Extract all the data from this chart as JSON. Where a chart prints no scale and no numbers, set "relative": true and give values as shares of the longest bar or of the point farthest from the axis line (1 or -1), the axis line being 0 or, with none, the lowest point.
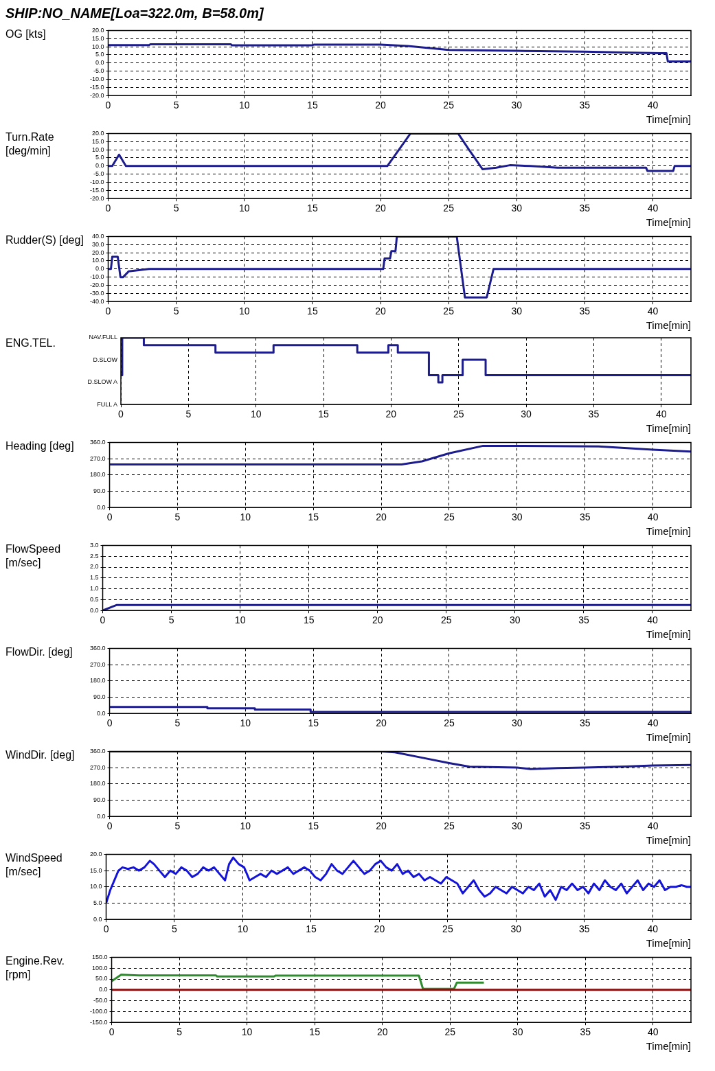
{
  "chart_data": [
    {
      "type": "line",
      "title": "SHIP:NO_NAME[Loa=322.0m, B=58.0m]",
      "ylabel": "OG [kts]",
      "xlabel": "Time[min]",
      "grid": true,
      "line_style": "solid",
      "xlim": [
        0,
        42.8
      ],
      "xticks": [
        0,
        5,
        10,
        15,
        20,
        25,
        30,
        35,
        40
      ],
      "ylim": [
        -20,
        20
      ],
      "yticks": [
        {
          "value": -20,
          "label": "-20.0"
        },
        {
          "value": -15,
          "label": "-15.0"
        },
        {
          "value": -10,
          "label": "-10.0"
        },
        {
          "value": -5,
          "label": "-5.0"
        },
        {
          "value": 0,
          "label": "0.0"
        },
        {
          "value": 5,
          "label": "5.0"
        },
        {
          "value": 10,
          "label": "10.0"
        },
        {
          "value": 15,
          "label": "15.0"
        },
        {
          "value": 20,
          "label": "20.0"
        }
      ],
      "series": [
        {
          "color": "#1c1c8c",
          "x": [
            0,
            3,
            3.1,
            9,
            9.1,
            15,
            15.1,
            20,
            22,
            24.5,
            25,
            30,
            35,
            38,
            40.5,
            41,
            41.1,
            42.8
          ],
          "values": [
            11,
            11,
            11.5,
            11.5,
            10.9,
            10.9,
            11.3,
            11.3,
            10.5,
            8.5,
            8,
            7.5,
            7,
            6.5,
            6,
            6,
            1,
            1
          ]
        }
      ]
    },
    {
      "type": "line",
      "ylabel": "Turn.Rate [deg/min]",
      "xlabel": "Time[min]",
      "grid": true,
      "line_style": "solid",
      "xlim": [
        0,
        42.8
      ],
      "xticks": [
        0,
        5,
        10,
        15,
        20,
        25,
        30,
        35,
        40
      ],
      "ylim": [
        -20,
        20
      ],
      "yticks": [
        {
          "value": -20,
          "label": "-20.0"
        },
        {
          "value": -15,
          "label": "-15.0"
        },
        {
          "value": -10,
          "label": "-10.0"
        },
        {
          "value": -5,
          "label": "-5.0"
        },
        {
          "value": 0,
          "label": "0.0"
        },
        {
          "value": 5,
          "label": "5.0"
        },
        {
          "value": 10,
          "label": "10.0"
        },
        {
          "value": 15,
          "label": "15.0"
        },
        {
          "value": 20,
          "label": "20.0"
        }
      ],
      "series": [
        {
          "color": "#1c1c8c",
          "x": [
            0,
            0.3,
            0.8,
            1.3,
            20.5,
            22.2,
            25.7,
            26.5,
            27.5,
            28.5,
            29.5,
            31,
            33,
            39.5,
            39.6,
            41.5,
            41.6,
            42.8
          ],
          "values": [
            0,
            0,
            7,
            0,
            0,
            20,
            20,
            10,
            -2,
            -1,
            0.5,
            0,
            -1,
            -1,
            -3,
            -3,
            0,
            0
          ]
        }
      ]
    },
    {
      "type": "line",
      "ylabel": "Rudder(S) [deg]",
      "xlabel": "Time[min]",
      "grid": true,
      "line_style": "solid",
      "xlim": [
        0,
        42.8
      ],
      "xticks": [
        0,
        5,
        10,
        15,
        20,
        25,
        30,
        35,
        40
      ],
      "ylim": [
        -40,
        40
      ],
      "yticks": [
        {
          "value": -40,
          "label": "-40.0"
        },
        {
          "value": -30,
          "label": "-30.0"
        },
        {
          "value": -20,
          "label": "-20.0"
        },
        {
          "value": -10,
          "label": "-10.0"
        },
        {
          "value": 0,
          "label": "0.0"
        },
        {
          "value": 10,
          "label": "10.0"
        },
        {
          "value": 20,
          "label": "20.0"
        },
        {
          "value": 30,
          "label": "30.0"
        },
        {
          "value": 40,
          "label": "40.0"
        }
      ],
      "series": [
        {
          "color": "#1c1c8c",
          "x": [
            0,
            0.2,
            0.3,
            0.7,
            0.9,
            1.1,
            1.5,
            3,
            20.2,
            20.3,
            20.7,
            20.8,
            21.1,
            21.2,
            25.6,
            26.2,
            27.8,
            28.3,
            42.8
          ],
          "values": [
            0,
            0,
            15,
            15,
            -10,
            -10,
            -3,
            0,
            0,
            13,
            13,
            22,
            22,
            40,
            40,
            -35,
            -35,
            0,
            0
          ]
        }
      ]
    },
    {
      "type": "step",
      "ylabel": "ENG.TEL.",
      "xlabel": "Time[min]",
      "grid": "x",
      "line_style": "solid",
      "relative": true,
      "xlim": [
        0,
        42.2
      ],
      "xticks": [
        0,
        5,
        10,
        15,
        20,
        25,
        30,
        35,
        40
      ],
      "annotations": [
        "NAV.FULL",
        "D.SLOW",
        "D.SLOW A",
        "FULL A"
      ],
      "series": [
        {
          "color": "#1c1c8c",
          "x": [
            0,
            0.1,
            1.7,
            7,
            11.3,
            17.5,
            19.8,
            20.5,
            22.8,
            23.5,
            23.8,
            25.3,
            27,
            42.2
          ],
          "values": [
            0.44,
            1,
            0.89,
            0.78,
            0.89,
            0.78,
            0.89,
            0.78,
            0.44,
            0.33,
            0.44,
            0.67,
            0.44,
            0.44
          ]
        }
      ]
    },
    {
      "type": "line",
      "ylabel": "Heading [deg]",
      "xlabel": "Time[min]",
      "grid": true,
      "line_style": "solid",
      "xlim": [
        0,
        42.8
      ],
      "xticks": [
        0,
        5,
        10,
        15,
        20,
        25,
        30,
        35,
        40
      ],
      "ylim": [
        0,
        360
      ],
      "yticks": [
        {
          "value": 0,
          "label": "0.0"
        },
        {
          "value": 90,
          "label": "90.0"
        },
        {
          "value": 180,
          "label": "180.0"
        },
        {
          "value": 270,
          "label": "270.0"
        },
        {
          "value": 360,
          "label": "360.0"
        }
      ],
      "series": [
        {
          "color": "#1c1c8c",
          "x": [
            0,
            21.5,
            23,
            25,
            27.5,
            30,
            36,
            40,
            42.8
          ],
          "values": [
            238,
            238,
            255,
            300,
            341,
            341,
            338,
            320,
            309
          ]
        }
      ]
    },
    {
      "type": "line",
      "ylabel": "FlowSpeed [m/sec]",
      "xlabel": "Time[min]",
      "grid": true,
      "line_style": "solid",
      "xlim": [
        0,
        42.8
      ],
      "xticks": [
        0,
        5,
        10,
        15,
        20,
        25,
        30,
        35,
        40
      ],
      "ylim": [
        0,
        3
      ],
      "yticks": [
        {
          "value": 0,
          "label": "0.0"
        },
        {
          "value": 0.5,
          "label": "0.5"
        },
        {
          "value": 1,
          "label": "1.0"
        },
        {
          "value": 1.5,
          "label": "1.5"
        },
        {
          "value": 2,
          "label": "2.0"
        },
        {
          "value": 2.5,
          "label": "2.5"
        },
        {
          "value": 3,
          "label": "3.0"
        }
      ],
      "series": [
        {
          "color": "#1c1c8c",
          "x": [
            0,
            1,
            42.8
          ],
          "values": [
            0,
            0.25,
            0.25
          ]
        }
      ]
    },
    {
      "type": "step",
      "ylabel": "FlowDir. [deg]",
      "xlabel": "Time[min]",
      "grid": true,
      "line_style": "solid",
      "xlim": [
        0,
        42.8
      ],
      "xticks": [
        0,
        5,
        10,
        15,
        20,
        25,
        30,
        35,
        40
      ],
      "ylim": [
        0,
        360
      ],
      "yticks": [
        {
          "value": 0,
          "label": "0.0"
        },
        {
          "value": 90,
          "label": "90.0"
        },
        {
          "value": 180,
          "label": "180.0"
        },
        {
          "value": 270,
          "label": "270.0"
        },
        {
          "value": 360,
          "label": "360.0"
        }
      ],
      "series": [
        {
          "color": "#1c1c8c",
          "x": [
            0,
            7.2,
            10.7,
            14.8,
            42.8
          ],
          "values": [
            36,
            28,
            22,
            8,
            8
          ]
        }
      ]
    },
    {
      "type": "line",
      "ylabel": "WindDir. [deg]",
      "xlabel": "Time[min]",
      "grid": true,
      "line_style": "solid",
      "xlim": [
        0,
        42.8
      ],
      "xticks": [
        0,
        5,
        10,
        15,
        20,
        25,
        30,
        35,
        40
      ],
      "ylim": [
        0,
        360
      ],
      "yticks": [
        {
          "value": 0,
          "label": "0.0"
        },
        {
          "value": 90,
          "label": "90.0"
        },
        {
          "value": 180,
          "label": "180.0"
        },
        {
          "value": 270,
          "label": "270.0"
        },
        {
          "value": 360,
          "label": "360.0"
        }
      ],
      "series": [
        {
          "color": "#1c1c8c",
          "x": [
            0,
            20,
            21,
            23,
            25,
            26.5,
            30,
            31,
            33,
            35,
            38,
            40,
            42.8
          ],
          "values": [
            360,
            360,
            355,
            325,
            295,
            275,
            270,
            262,
            268,
            270,
            276,
            282,
            285
          ]
        }
      ]
    },
    {
      "type": "line",
      "ylabel": "WindSpeed [m/sec]",
      "xlabel": "Time[min]",
      "grid": true,
      "line_style": "solid",
      "xlim": [
        0,
        42.8
      ],
      "xticks": [
        0,
        5,
        10,
        15,
        20,
        25,
        30,
        35,
        40
      ],
      "ylim": [
        0,
        20
      ],
      "yticks": [
        {
          "value": 0,
          "label": "0.0"
        },
        {
          "value": 5,
          "label": "5.0"
        },
        {
          "value": 10,
          "label": "10.0"
        },
        {
          "value": 15,
          "label": "15.0"
        },
        {
          "value": 20,
          "label": "20.0"
        }
      ],
      "series": [
        {
          "color": "#1414d8",
          "x": [
            0,
            0.3,
            0.6,
            0.9,
            1.2,
            1.6,
            2,
            2.4,
            2.8,
            3.2,
            3.5,
            3.9,
            4.3,
            4.7,
            5.1,
            5.5,
            5.9,
            6.3,
            6.7,
            7.1,
            7.5,
            7.9,
            8.3,
            8.7,
            9,
            9.3,
            9.7,
            10.1,
            10.5,
            10.9,
            11.3,
            11.7,
            12.1,
            12.5,
            12.9,
            13.3,
            13.7,
            14.1,
            14.5,
            14.9,
            15.3,
            15.7,
            16.1,
            16.5,
            16.9,
            17.3,
            17.7,
            18.1,
            18.5,
            18.9,
            19.3,
            19.7,
            20.1,
            20.5,
            20.9,
            21.3,
            21.7,
            22.1,
            22.5,
            22.9,
            23.3,
            23.7,
            24.1,
            24.5,
            24.9,
            25.3,
            25.7,
            26.1,
            26.5,
            26.9,
            27.3,
            27.7,
            28.1,
            28.5,
            28.9,
            29.3,
            29.7,
            30.1,
            30.5,
            30.9,
            31.3,
            31.7,
            32.1,
            32.5,
            32.9,
            33.3,
            33.7,
            34.1,
            34.5,
            34.9,
            35.3,
            35.7,
            36.1,
            36.5,
            36.9,
            37.3,
            37.7,
            38.1,
            38.5,
            38.9,
            39.3,
            39.7,
            40.1,
            40.5,
            40.9,
            41.3,
            41.7,
            42.1,
            42.5,
            42.8
          ],
          "values": [
            5,
            9,
            12,
            15,
            16,
            15.5,
            16,
            15,
            16,
            18,
            17,
            15,
            13,
            15,
            14,
            16,
            15,
            13,
            14,
            16,
            15,
            16,
            14,
            12,
            17,
            19,
            17,
            16,
            12,
            13,
            14,
            13,
            15,
            14,
            15,
            16,
            14,
            15,
            16,
            15,
            13,
            12,
            14,
            17,
            15,
            14,
            16,
            18,
            16,
            14,
            15,
            17,
            18,
            16,
            15,
            17,
            14,
            15,
            13,
            14,
            12,
            13,
            12,
            11,
            13,
            12,
            11,
            8,
            10,
            12,
            9,
            7,
            8,
            10,
            9,
            8,
            10,
            9,
            8,
            10,
            9,
            11,
            7,
            9,
            6,
            10,
            9,
            11,
            9,
            10,
            8,
            11,
            9,
            12,
            10,
            9,
            11,
            8,
            10,
            12,
            9,
            11,
            10,
            12,
            9,
            10,
            10,
            10.5,
            10,
            10
          ]
        }
      ]
    },
    {
      "type": "line",
      "ylabel": "Engine.Rev. [rpm]",
      "xlabel": "Time[min]",
      "grid": true,
      "line_style": "solid",
      "xlim": [
        0,
        42.8
      ],
      "xticks": [
        0,
        5,
        10,
        15,
        20,
        25,
        30,
        35,
        40
      ],
      "ylim": [
        -150,
        150
      ],
      "yticks": [
        {
          "value": -150,
          "label": "-150.0"
        },
        {
          "value": -100,
          "label": "-100.0"
        },
        {
          "value": -50,
          "label": "-50.0"
        },
        {
          "value": 0,
          "label": "0.0"
        },
        {
          "value": 50,
          "label": "50.0"
        },
        {
          "value": 100,
          "label": "100.0"
        },
        {
          "value": 150,
          "label": "150.0"
        }
      ],
      "series": [
        {
          "color": "#8b0d0d",
          "x": [
            0,
            42.8
          ],
          "values": [
            0,
            0
          ]
        },
        {
          "color": "#2e8b2e",
          "x": [
            0,
            0.7,
            2,
            7.7,
            7.8,
            12,
            12.1,
            20,
            22.7,
            23,
            25.3,
            25.5,
            27.5
          ],
          "values": [
            40,
            70,
            67,
            67,
            62,
            62,
            66,
            66,
            66,
            5,
            5,
            33,
            33
          ]
        }
      ]
    }
  ]
}
